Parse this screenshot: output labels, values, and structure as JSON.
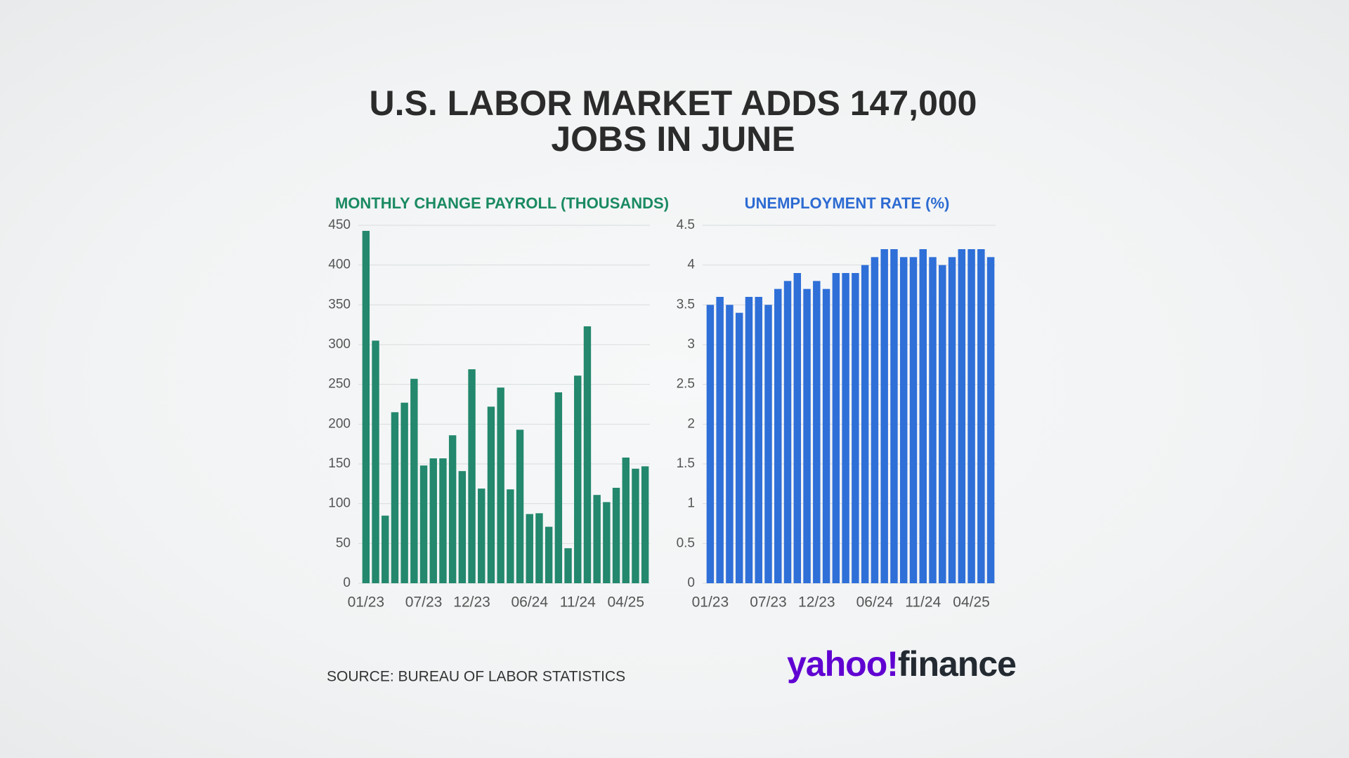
{
  "title": [
    "U.S. LABOR MARKET ADDS 147,000",
    "JOBS IN JUNE"
  ],
  "source": "SOURCE: BUREAU OF LABOR STATISTICS",
  "logo": [
    "yahoo!",
    "finance"
  ],
  "chart_data": [
    {
      "type": "bar",
      "title": "MONTHLY CHANGE PAYROLL (THOUSANDS)",
      "title_color": "#1a8a62",
      "color": "#23886d",
      "categories": [
        "01/23",
        null,
        null,
        null,
        null,
        null,
        "07/23",
        null,
        null,
        null,
        null,
        "12/23",
        null,
        null,
        null,
        null,
        null,
        "06/24",
        null,
        null,
        null,
        null,
        "11/24",
        null,
        null,
        null,
        null,
        "04/25",
        null,
        null
      ],
      "values": [
        443,
        305,
        85,
        215,
        227,
        257,
        148,
        157,
        157,
        186,
        141,
        269,
        119,
        222,
        246,
        118,
        193,
        87,
        88,
        71,
        240,
        44,
        261,
        323,
        111,
        102,
        120,
        158,
        144,
        147
      ],
      "ylim": [
        0,
        450
      ],
      "yticks": [
        0,
        50,
        100,
        150,
        200,
        250,
        300,
        350,
        400,
        450
      ],
      "grid": true
    },
    {
      "type": "bar",
      "title": "UNEMPLOYMENT RATE (%)",
      "title_color": "#2d6bd2",
      "color": "#2f6fd8",
      "categories": [
        "01/23",
        null,
        null,
        null,
        null,
        null,
        "07/23",
        null,
        null,
        null,
        null,
        "12/23",
        null,
        null,
        null,
        null,
        null,
        "06/24",
        null,
        null,
        null,
        null,
        "11/24",
        null,
        null,
        null,
        null,
        "04/25",
        null,
        null
      ],
      "values": [
        3.5,
        3.6,
        3.5,
        3.4,
        3.6,
        3.6,
        3.5,
        3.7,
        3.8,
        3.9,
        3.7,
        3.8,
        3.7,
        3.9,
        3.9,
        3.9,
        4.0,
        4.1,
        4.2,
        4.2,
        4.1,
        4.1,
        4.2,
        4.1,
        4.0,
        4.1,
        4.2,
        4.2,
        4.2,
        4.1
      ],
      "ylim": [
        0,
        4.5
      ],
      "yticks": [
        0,
        0.5,
        1,
        1.5,
        2,
        2.5,
        3,
        3.5,
        4,
        4.5
      ],
      "grid": true
    }
  ]
}
